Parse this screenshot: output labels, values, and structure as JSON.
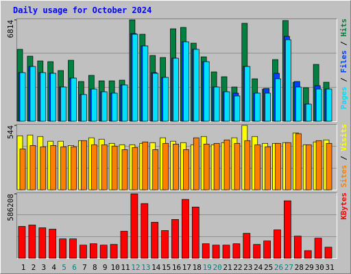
{
  "chart_data": [
    {
      "type": "bar",
      "title": "Daily usage for October 2024",
      "ylim": [
        0,
        6814
      ],
      "yticks": [
        6814
      ],
      "grid": true,
      "legend_separator": " / ",
      "series": [
        {
          "name": "Hits",
          "color": "#008040",
          "values": [
            4834,
            4374,
            4052,
            4005,
            3407,
            4098,
            2670,
            3085,
            2716,
            2716,
            2762,
            6814,
            5847,
            4420,
            4282,
            6215,
            6307,
            5249,
            4328,
            3315,
            2993,
            2302,
            6584,
            2854,
            2164,
            4144,
            6768,
            2624,
            2256,
            3821,
            2624
          ]
        },
        {
          "name": "Files",
          "color": "#0040ff",
          "values": [
            3269,
            3683,
            3269,
            3223,
            2302,
            2901,
            1796,
            2164,
            1980,
            1888,
            2440,
            5893,
            5064,
            3269,
            2947,
            4236,
            5341,
            4834,
            4005,
            2302,
            1980,
            1888,
            3683,
            1888,
            2210,
            3223,
            5709,
            2670,
            1151,
            2394,
            2164
          ]
        },
        {
          "name": "Pages",
          "color": "#00e0ff",
          "values": [
            3269,
            3683,
            3269,
            3223,
            2302,
            2901,
            1796,
            2164,
            1980,
            1888,
            2440,
            5847,
            5064,
            3223,
            2947,
            4236,
            5341,
            4834,
            4005,
            2302,
            1980,
            1703,
            3683,
            1888,
            1888,
            2854,
            5479,
            2302,
            1151,
            2164,
            2164
          ]
        }
      ]
    },
    {
      "type": "bar",
      "ylim": [
        0,
        544
      ],
      "yticks": [
        544
      ],
      "grid": true,
      "legend_separator": " / ",
      "series": [
        {
          "name": "Visits",
          "color": "#ffff00",
          "values": [
            456,
            462,
            450,
            410,
            410,
            374,
            415,
            439,
            427,
            392,
            380,
            380,
            392,
            398,
            439,
            410,
            398,
            380,
            450,
            380,
            398,
            439,
            544,
            450,
            392,
            392,
            398,
            480,
            380,
            404,
            421
          ]
        },
        {
          "name": "Sites",
          "color": "#ff8000",
          "values": [
            345,
            374,
            363,
            374,
            363,
            363,
            415,
            380,
            380,
            369,
            339,
            357,
            404,
            339,
            392,
            386,
            339,
            439,
            386,
            392,
            421,
            392,
            415,
            380,
            363,
            392,
            398,
            474,
            380,
            415,
            392
          ]
        }
      ]
    },
    {
      "type": "bar",
      "ylim": [
        0,
        586208
      ],
      "yticks": [
        586208
      ],
      "grid": true,
      "series": [
        {
          "name": "KBytes",
          "color": "#ff0000",
          "values": [
            289938,
            302544,
            277332,
            264726,
            176484,
            176484,
            119757,
            132363,
            119757,
            126060,
            245817,
            586208,
            497937,
            327756,
            252120,
            352968,
            535755,
            466422,
            132363,
            119757,
            119757,
            132363,
            226908,
            126060,
            157575,
            258423,
            523149,
            201696,
            69333,
            182787,
            100848
          ]
        }
      ],
      "categories": [
        "1",
        "2",
        "3",
        "4",
        "5",
        "6",
        "7",
        "8",
        "9",
        "10",
        "11",
        "12",
        "13",
        "14",
        "15",
        "16",
        "17",
        "18",
        "19",
        "20",
        "21",
        "22",
        "23",
        "24",
        "25",
        "26",
        "27",
        "28",
        "29",
        "30",
        "31"
      ],
      "category_colors": [
        "#000000",
        "#000000",
        "#000000",
        "#000000",
        "#008080",
        "#008080",
        "#000000",
        "#000000",
        "#000000",
        "#000000",
        "#000000",
        "#008080",
        "#008080",
        "#000000",
        "#000000",
        "#000000",
        "#000000",
        "#000000",
        "#008080",
        "#008080",
        "#000000",
        "#000000",
        "#000000",
        "#000000",
        "#000000",
        "#008080",
        "#008080",
        "#000000",
        "#000000",
        "#000000",
        "#000000"
      ]
    }
  ]
}
